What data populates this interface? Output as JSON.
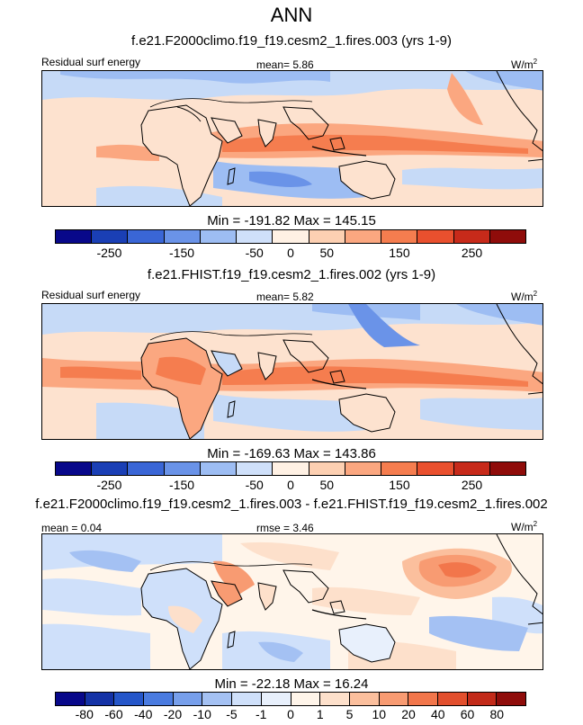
{
  "title": "ANN",
  "panels": [
    {
      "case": "f.e21.F2000climo.f19_f19.cesm2_1.fires.003 (yrs 1-9)",
      "left_label": "Residual surf energy",
      "center_label": "mean=  5.86",
      "units_base": "W/m",
      "units_exp": "2",
      "minmax": "Min = -191.82 Max = 145.15",
      "colorbar_labels": [
        "-250",
        "-150",
        "-50",
        "0",
        "50",
        "150",
        "250"
      ]
    },
    {
      "case": "f.e21.FHIST.f19_f19.cesm2_1.fires.002 (yrs 1-9)",
      "left_label": "Residual surf energy",
      "center_label": "mean=  5.82",
      "units_base": "W/m",
      "units_exp": "2",
      "minmax": "Min = -169.63 Max = 143.86",
      "colorbar_labels": [
        "-250",
        "-150",
        "-50",
        "0",
        "50",
        "150",
        "250"
      ]
    },
    {
      "case": "f.e21.F2000climo.f19_f19.cesm2_1.fires.003 - f.e21.FHIST.f19_f19.cesm2_1.fires.002",
      "left_label": "mean =  0.04",
      "center_label": "rmse =  3.46",
      "units_base": "W/m",
      "units_exp": "2",
      "minmax": "Min = -22.18 Max =  16.24",
      "colorbar_labels": [
        "-80",
        "-60",
        "-40",
        "-20",
        "-10",
        "-5",
        "-1",
        "0",
        "1",
        "5",
        "10",
        "20",
        "40",
        "60",
        "80"
      ]
    }
  ],
  "colorbar_colors": [
    "#08088a",
    "#1a3fb5",
    "#3a66d6",
    "#6a93e8",
    "#9dbdf3",
    "#cfe0fa",
    "#fff1e4",
    "#fdd0b2",
    "#fba780",
    "#f57d4f",
    "#e9502e",
    "#c72a1a",
    "#8f0c0a"
  ],
  "colorbar_colors_diff": [
    "#08088a",
    "#1432a6",
    "#2556c9",
    "#4a7be0",
    "#779feb",
    "#a4c1f3",
    "#cfe0fa",
    "#e8f0fc",
    "#fff5ea",
    "#fde0cb",
    "#fbbf9d",
    "#f89b72",
    "#f2764b",
    "#e24f2d",
    "#c22a19",
    "#8f0c0a"
  ]
}
